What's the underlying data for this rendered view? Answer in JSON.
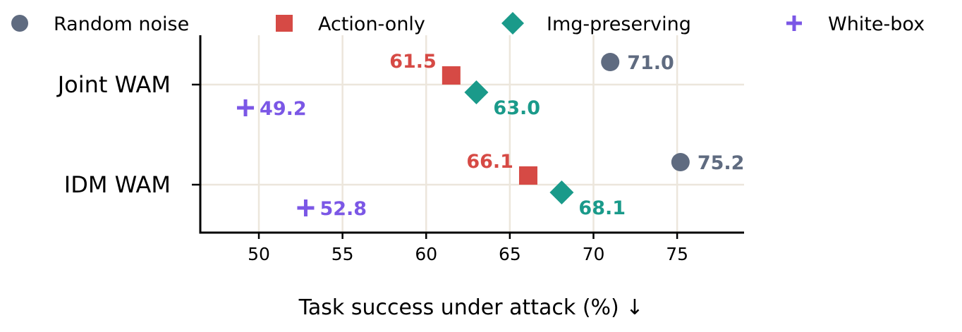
{
  "chart_data": {
    "type": "scatter",
    "categories": [
      "Joint WAM",
      "IDM WAM"
    ],
    "series": [
      {
        "name": "Random noise",
        "color": "#5f6b80",
        "marker": "circle",
        "values": [
          71.0,
          75.2
        ],
        "labels": [
          "71.0",
          "75.2"
        ]
      },
      {
        "name": "Action-only",
        "color": "#d64a45",
        "marker": "square",
        "values": [
          61.5,
          66.1
        ],
        "labels": [
          "61.5",
          "66.1"
        ]
      },
      {
        "name": "Img-preserving",
        "color": "#1a9a8a",
        "marker": "diamond",
        "values": [
          63.0,
          68.1
        ],
        "labels": [
          "63.0",
          "68.1"
        ]
      },
      {
        "name": "White-box",
        "color": "#7b57e6",
        "marker": "plus",
        "values": [
          49.2,
          52.8
        ],
        "labels": [
          "49.2",
          "52.8"
        ]
      }
    ],
    "xlabel": "Task success under attack (%) ↓",
    "ylabel": "",
    "xlim": [
      46.5,
      79
    ],
    "xticks": [
      50,
      55,
      60,
      65,
      70,
      75
    ],
    "xtick_labels": [
      "50",
      "55",
      "60",
      "65",
      "70",
      "75"
    ],
    "grid": true,
    "legend_position": "top"
  }
}
